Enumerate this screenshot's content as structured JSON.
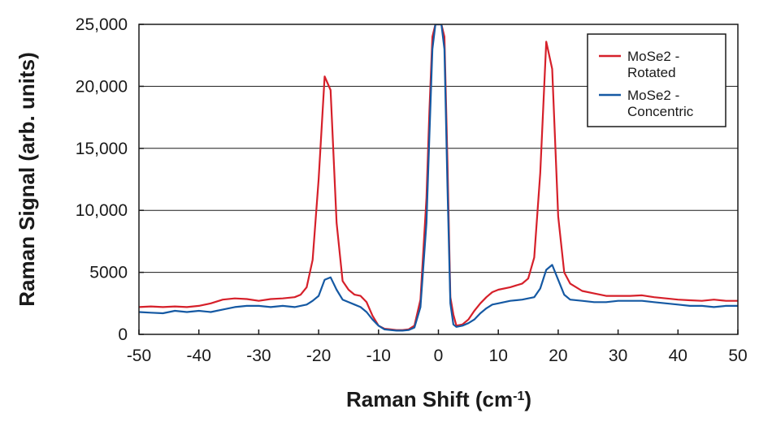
{
  "chart_data": {
    "type": "line",
    "xlabel": "Raman Shift (cm",
    "xlabel_sup": "-1",
    "xlabel_close": ")",
    "ylabel": "Raman Signal (arb. units)",
    "xlim": [
      -50,
      50
    ],
    "ylim": [
      0,
      25000
    ],
    "x_ticks": [
      -50,
      -40,
      -30,
      -20,
      -10,
      0,
      10,
      20,
      30,
      40,
      50
    ],
    "x_tick_labels": [
      "-50",
      "-40",
      "-30",
      "-20",
      "-10",
      "0",
      "10",
      "20",
      "30",
      "40",
      "50"
    ],
    "y_ticks": [
      0,
      5000,
      10000,
      15000,
      20000,
      25000
    ],
    "y_tick_labels": [
      "0",
      "5000",
      "10,000",
      "15,000",
      "20,000",
      "25,000"
    ],
    "grid": "horizontal",
    "legend_position": "top-right",
    "series": [
      {
        "name_lines": [
          "MoSe2 -",
          "Rotated"
        ],
        "color": "#d6202a",
        "x": [
          -50,
          -48,
          -46,
          -44,
          -42,
          -40,
          -38,
          -36,
          -34,
          -32,
          -30,
          -28,
          -26,
          -24,
          -23,
          -22,
          -21,
          -20,
          -19,
          -18,
          -17,
          -16,
          -15,
          -14,
          -13,
          -12,
          -11,
          -10,
          -9,
          -8,
          -7,
          -6,
          -5,
          -4,
          -3,
          -2,
          -1.5,
          -1,
          -0.5,
          0,
          0.5,
          1,
          1.5,
          2,
          2.5,
          3,
          4,
          5,
          6,
          7,
          8,
          9,
          10,
          12,
          14,
          15,
          16,
          17,
          18,
          19,
          20,
          21,
          22,
          24,
          26,
          28,
          30,
          32,
          34,
          36,
          38,
          40,
          42,
          44,
          46,
          48,
          50
        ],
        "y": [
          2200,
          2250,
          2200,
          2250,
          2200,
          2300,
          2500,
          2800,
          2900,
          2850,
          2700,
          2850,
          2900,
          3000,
          3200,
          3800,
          6000,
          12500,
          20800,
          19700,
          9000,
          4300,
          3600,
          3200,
          3100,
          2600,
          1500,
          700,
          450,
          400,
          350,
          350,
          400,
          700,
          2800,
          11000,
          18000,
          24000,
          25000,
          25000,
          25000,
          24000,
          14000,
          3000,
          1600,
          700,
          800,
          1200,
          1900,
          2500,
          3000,
          3400,
          3600,
          3800,
          4100,
          4500,
          6200,
          13000,
          23600,
          21400,
          9500,
          5000,
          4100,
          3500,
          3300,
          3100,
          3100,
          3100,
          3150,
          3000,
          2900,
          2800,
          2750,
          2700,
          2800,
          2700,
          2700
        ]
      },
      {
        "name_lines": [
          "MoSe2 -",
          "Concentric"
        ],
        "color": "#1559a3",
        "x": [
          -50,
          -48,
          -46,
          -44,
          -42,
          -40,
          -38,
          -36,
          -34,
          -32,
          -30,
          -28,
          -26,
          -24,
          -22,
          -21,
          -20,
          -19,
          -18,
          -17,
          -16,
          -15,
          -14,
          -13,
          -12,
          -11,
          -10,
          -9,
          -8,
          -7,
          -6,
          -5,
          -4,
          -3,
          -2,
          -1.5,
          -1,
          -0.5,
          0,
          0.5,
          1,
          1.5,
          2,
          2.5,
          3,
          4,
          5,
          6,
          7,
          8,
          9,
          10,
          12,
          14,
          15,
          16,
          17,
          18,
          19,
          20,
          21,
          22,
          24,
          26,
          28,
          30,
          32,
          34,
          36,
          38,
          40,
          42,
          44,
          46,
          48,
          50
        ],
        "y": [
          1800,
          1750,
          1700,
          1900,
          1800,
          1900,
          1800,
          2000,
          2200,
          2300,
          2300,
          2200,
          2300,
          2200,
          2400,
          2700,
          3100,
          4400,
          4600,
          3600,
          2800,
          2600,
          2400,
          2200,
          1800,
          1200,
          700,
          400,
          350,
          300,
          300,
          350,
          550,
          2200,
          9000,
          16000,
          23000,
          25000,
          25000,
          25000,
          23000,
          12000,
          2500,
          800,
          600,
          700,
          900,
          1200,
          1700,
          2100,
          2400,
          2500,
          2700,
          2800,
          2900,
          3000,
          3700,
          5200,
          5600,
          4400,
          3200,
          2800,
          2700,
          2600,
          2600,
          2700,
          2700,
          2700,
          2600,
          2500,
          2400,
          2300,
          2300,
          2200,
          2300,
          2300
        ]
      }
    ]
  }
}
